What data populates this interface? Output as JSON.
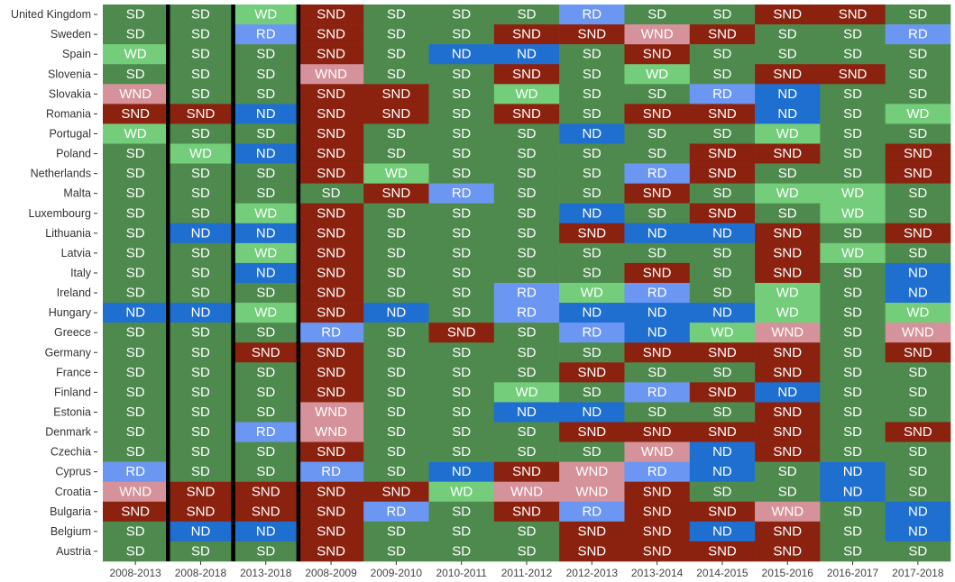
{
  "chart_data": {
    "type": "heatmap",
    "columns": [
      "2008-2013",
      "2008-2018",
      "2013-2018",
      "2008-2009",
      "2009-2010",
      "2010-2011",
      "2011-2012",
      "2012-2013",
      "2013-2014",
      "2014-2015",
      "2015-2016",
      "2016-2017",
      "2017-2018"
    ],
    "rows": [
      "United Kingdom",
      "Sweden",
      "Spain",
      "Slovenia",
      "Slovakia",
      "Romania",
      "Portugal",
      "Poland",
      "Netherlands",
      "Malta",
      "Luxembourg",
      "Lithuania",
      "Latvia",
      "Italy",
      "Ireland",
      "Hungary",
      "Greece",
      "Germany",
      "France",
      "Finland",
      "Estonia",
      "Denmark",
      "Czechia",
      "Cyprus",
      "Croatia",
      "Bulgaria",
      "Belgium",
      "Austria"
    ],
    "values": [
      [
        "SD",
        "SD",
        "WD",
        "SND",
        "SD",
        "SD",
        "SD",
        "RD",
        "SD",
        "SD",
        "SND",
        "SND",
        "SD"
      ],
      [
        "SD",
        "SD",
        "RD",
        "SND",
        "SD",
        "SD",
        "SND",
        "SND",
        "WND",
        "SND",
        "SD",
        "SD",
        "RD"
      ],
      [
        "WD",
        "SD",
        "SD",
        "SND",
        "SD",
        "ND",
        "ND",
        "SD",
        "SND",
        "SD",
        "SD",
        "SD",
        "SD"
      ],
      [
        "SD",
        "SD",
        "SD",
        "WND",
        "SD",
        "SD",
        "SND",
        "SD",
        "WD",
        "SD",
        "SND",
        "SND",
        "SD"
      ],
      [
        "WND",
        "SD",
        "SD",
        "SND",
        "SND",
        "SD",
        "WD",
        "SD",
        "SD",
        "RD",
        "ND",
        "SD",
        "SD"
      ],
      [
        "SND",
        "SND",
        "ND",
        "SND",
        "SND",
        "SD",
        "SND",
        "SD",
        "SND",
        "SND",
        "ND",
        "SD",
        "WD"
      ],
      [
        "WD",
        "SD",
        "SD",
        "SND",
        "SD",
        "SD",
        "SD",
        "ND",
        "SD",
        "SD",
        "WD",
        "SD",
        "SD"
      ],
      [
        "SD",
        "WD",
        "ND",
        "SND",
        "SD",
        "SD",
        "SD",
        "SD",
        "SD",
        "SND",
        "SND",
        "SD",
        "SND"
      ],
      [
        "SD",
        "SD",
        "SD",
        "SND",
        "WD",
        "SD",
        "SD",
        "SD",
        "RD",
        "SND",
        "SD",
        "SD",
        "SND"
      ],
      [
        "SD",
        "SD",
        "SD",
        "SD",
        "SND",
        "RD",
        "SD",
        "SD",
        "SND",
        "SD",
        "WD",
        "WD",
        "SD"
      ],
      [
        "SD",
        "SD",
        "WD",
        "SND",
        "SD",
        "SD",
        "SD",
        "ND",
        "SD",
        "SND",
        "SD",
        "WD",
        "SD"
      ],
      [
        "SD",
        "ND",
        "ND",
        "SND",
        "SD",
        "SD",
        "SD",
        "SND",
        "ND",
        "ND",
        "SND",
        "SD",
        "SND"
      ],
      [
        "SD",
        "SD",
        "WD",
        "SND",
        "SD",
        "SD",
        "SD",
        "SD",
        "SD",
        "SD",
        "SND",
        "WD",
        "SD"
      ],
      [
        "SD",
        "SD",
        "ND",
        "SND",
        "SD",
        "SD",
        "SD",
        "SD",
        "SND",
        "SD",
        "SND",
        "SD",
        "ND"
      ],
      [
        "SD",
        "SD",
        "SD",
        "SND",
        "SD",
        "SD",
        "RD",
        "WD",
        "RD",
        "SD",
        "WD",
        "SD",
        "ND"
      ],
      [
        "ND",
        "ND",
        "WD",
        "SND",
        "ND",
        "SD",
        "RD",
        "ND",
        "ND",
        "ND",
        "WD",
        "SD",
        "WD"
      ],
      [
        "SD",
        "SD",
        "SD",
        "RD",
        "SD",
        "SND",
        "SD",
        "RD",
        "ND",
        "WD",
        "WND",
        "SD",
        "WND"
      ],
      [
        "SD",
        "SD",
        "SND",
        "SND",
        "SD",
        "SD",
        "SD",
        "SD",
        "SND",
        "SND",
        "SND",
        "SD",
        "SND"
      ],
      [
        "SD",
        "SD",
        "SD",
        "SND",
        "SD",
        "SD",
        "SD",
        "SND",
        "SD",
        "SD",
        "SND",
        "SD",
        "SD"
      ],
      [
        "SD",
        "SD",
        "SD",
        "SND",
        "SD",
        "SD",
        "WD",
        "SD",
        "RD",
        "SND",
        "ND",
        "SD",
        "SD"
      ],
      [
        "SD",
        "SD",
        "SD",
        "WND",
        "SD",
        "SD",
        "ND",
        "ND",
        "SD",
        "SD",
        "SND",
        "SD",
        "SD"
      ],
      [
        "SD",
        "SD",
        "RD",
        "WND",
        "SD",
        "SD",
        "SD",
        "SND",
        "SND",
        "SND",
        "SND",
        "SD",
        "SND"
      ],
      [
        "SD",
        "SD",
        "SD",
        "SND",
        "SD",
        "SD",
        "SD",
        "SD",
        "WND",
        "ND",
        "SND",
        "SD",
        "SD"
      ],
      [
        "RD",
        "SD",
        "SD",
        "RD",
        "SD",
        "ND",
        "SND",
        "WND",
        "RD",
        "ND",
        "SD",
        "ND",
        "SD"
      ],
      [
        "WND",
        "SND",
        "SND",
        "SND",
        "SND",
        "WD",
        "WND",
        "WND",
        "SND",
        "SD",
        "SD",
        "ND",
        "SD"
      ],
      [
        "SND",
        "SND",
        "SND",
        "SND",
        "RD",
        "SD",
        "SND",
        "RD",
        "SND",
        "SND",
        "WND",
        "SD",
        "ND"
      ],
      [
        "SD",
        "ND",
        "ND",
        "SND",
        "SD",
        "SD",
        "SD",
        "SND",
        "SND",
        "ND",
        "SND",
        "SD",
        "ND"
      ],
      [
        "SD",
        "SD",
        "SD",
        "SND",
        "SD",
        "SD",
        "SD",
        "SND",
        "SND",
        "SND",
        "SND",
        "SD",
        "SD"
      ]
    ],
    "category_colors": {
      "SD": "#4e8a4e",
      "WD": "#74cd7a",
      "ND": "#1f6fd1",
      "RD": "#6b97f2",
      "SND": "#8b2210",
      "WND": "#d5929a"
    },
    "separators_after_columns": [
      1,
      2,
      3
    ],
    "separator_color": "#000000",
    "grid": false
  }
}
